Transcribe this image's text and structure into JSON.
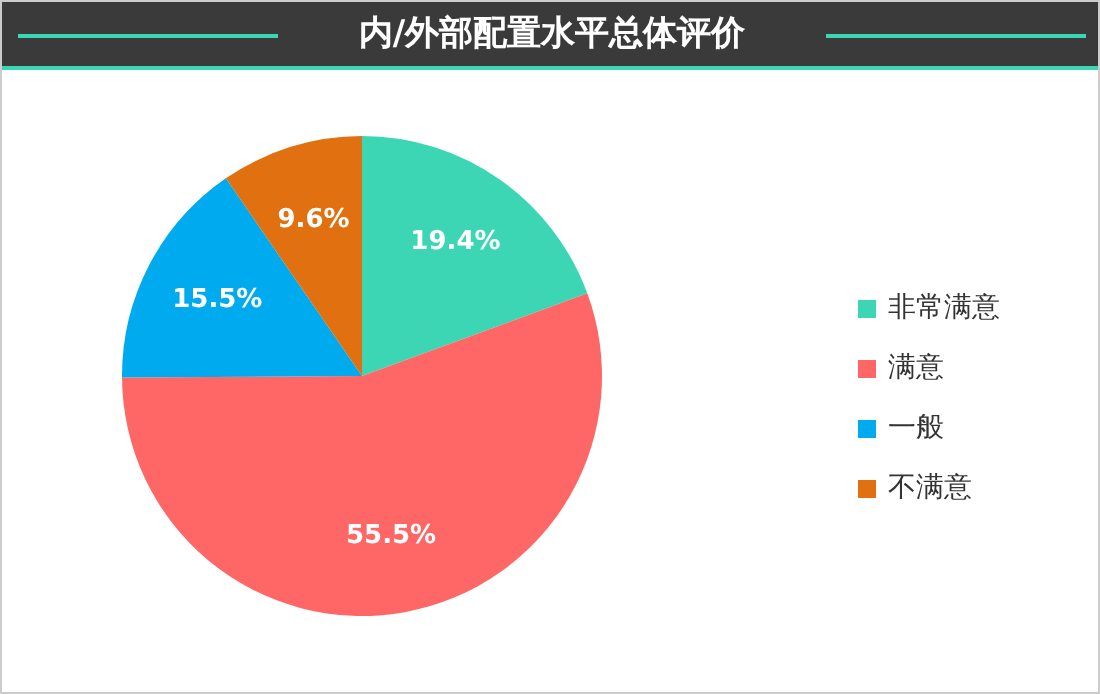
{
  "chart_data": {
    "type": "pie",
    "title": "内/外部配置水平总体评价",
    "categories": [
      "非常满意",
      "满意",
      "一般",
      "不满意"
    ],
    "values": [
      19.4,
      55.5,
      15.5,
      9.6
    ],
    "value_labels": [
      "19.4%",
      "55.5%",
      "15.5%",
      "9.6%"
    ],
    "colors": [
      "#3dd6b5",
      "#ff6666",
      "#00aaee",
      "#e07010"
    ],
    "legend": "right"
  }
}
